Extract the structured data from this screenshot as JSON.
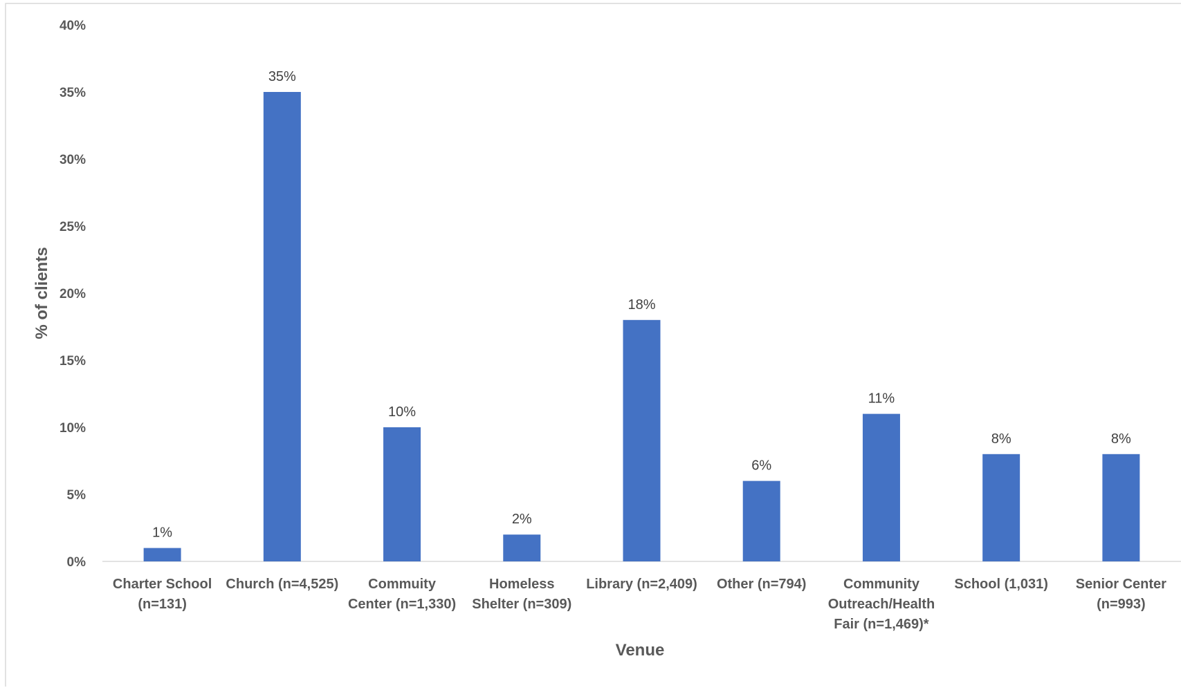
{
  "chart_data": {
    "type": "bar",
    "categories": [
      [
        "Charter School",
        "(n=131)"
      ],
      [
        "Church (n=4,525)"
      ],
      [
        "Commuity",
        "Center (n=1,330)"
      ],
      [
        "Homeless",
        "Shelter (n=309)"
      ],
      [
        "Library (n=2,409)"
      ],
      [
        "Other (n=794)"
      ],
      [
        "Community",
        "Outreach/Health",
        "Fair (n=1,469)*"
      ],
      [
        "School (1,031)"
      ],
      [
        "Senior Center",
        "(n=993)"
      ]
    ],
    "values": [
      1,
      35,
      10,
      2,
      18,
      6,
      11,
      8,
      8
    ],
    "data_labels": [
      "1%",
      "35%",
      "10%",
      "2%",
      "18%",
      "6%",
      "11%",
      "8%",
      "8%"
    ],
    "xlabel": "Venue",
    "ylabel": "% of clients",
    "ylim": [
      0,
      40
    ],
    "yticks": [
      "0%",
      "5%",
      "10%",
      "15%",
      "20%",
      "25%",
      "30%",
      "35%",
      "40%"
    ],
    "bar_color": "#4472C4",
    "grid": false,
    "legend": "none"
  }
}
